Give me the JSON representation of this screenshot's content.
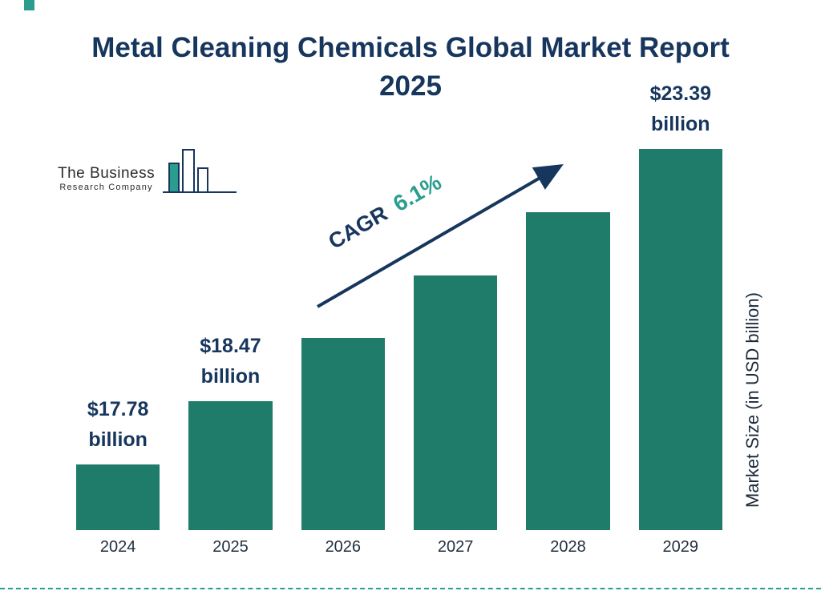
{
  "title": "Metal Cleaning Chemicals Global Market Report 2025",
  "logo": {
    "line1": "The Business",
    "line2": "Research Company"
  },
  "cagr": {
    "label": "CAGR",
    "value": "6.1%"
  },
  "ylabel": "Market Size (in USD billion)",
  "colors": {
    "bar": "#1f7c6b",
    "navy": "#17365d",
    "teal": "#2a9d8f"
  },
  "chart_data": {
    "type": "bar",
    "title": "Metal Cleaning Chemicals Global Market Report 2025",
    "categories": [
      "2024",
      "2025",
      "2026",
      "2027",
      "2028",
      "2029"
    ],
    "values": [
      17.78,
      18.47,
      19.6,
      20.8,
      22.1,
      23.39
    ],
    "labeled_values": {
      "2024": 17.78,
      "2025": 18.47,
      "2029": 23.39
    },
    "annotations": [
      {
        "category": "2024",
        "lines": [
          "$17.78",
          "billion"
        ]
      },
      {
        "category": "2025",
        "lines": [
          "$18.47",
          "billion"
        ]
      },
      {
        "category": "2029",
        "lines": [
          "$23.39",
          "billion"
        ]
      }
    ],
    "cagr_label": "CAGR",
    "cagr_value": "6.1%",
    "xlabel": "",
    "ylabel": "Market Size (in USD billion)",
    "legend": false,
    "grid": false
  }
}
